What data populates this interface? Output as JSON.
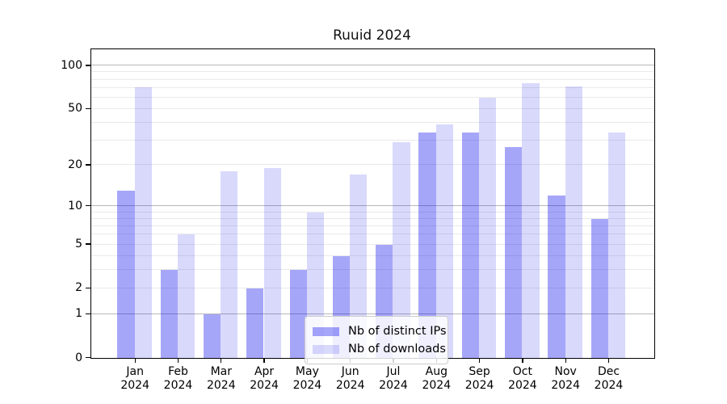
{
  "title": "Ruuid 2024",
  "chart_data": {
    "type": "bar",
    "title": "Ruuid 2024",
    "categories": [
      "Jan 2024",
      "Feb 2024",
      "Mar 2024",
      "Apr 2024",
      "May 2024",
      "Jun 2024",
      "Jul 2024",
      "Aug 2024",
      "Sep 2024",
      "Oct 2024",
      "Nov 2024",
      "Dec 2024"
    ],
    "series": [
      {
        "name": "Nb of distinct IPs",
        "values": [
          13,
          3,
          1,
          2,
          3,
          4,
          5,
          34,
          34,
          27,
          12,
          8
        ],
        "color": "#a6a6f4",
        "fill": "rgba(0,0,238,0.35)"
      },
      {
        "name": "Nb of downloads",
        "values": [
          71,
          6,
          18,
          19,
          9,
          17,
          29,
          39,
          60,
          76,
          72,
          34
        ],
        "color": "#d9d9fb",
        "fill": "rgba(0,0,238,0.15)"
      }
    ],
    "xlabel": "",
    "ylabel": "",
    "yscale": "log1p",
    "ylim": [
      0,
      128
    ],
    "yticks": [
      0,
      1,
      2,
      5,
      10,
      20,
      50,
      100
    ],
    "grid_major_values": [
      1,
      10,
      100
    ],
    "grid_minor_values": [
      2,
      3,
      4,
      5,
      6,
      7,
      8,
      9,
      20,
      30,
      40,
      50,
      60,
      70,
      80,
      90
    ],
    "grid": "horizontal",
    "legend_position": "inside bottom-center"
  },
  "colors": {
    "grid_major": "#b8b8b8",
    "grid_minor": "#eaeaea",
    "spine": "#000000",
    "legend_border": "#cccccc"
  }
}
